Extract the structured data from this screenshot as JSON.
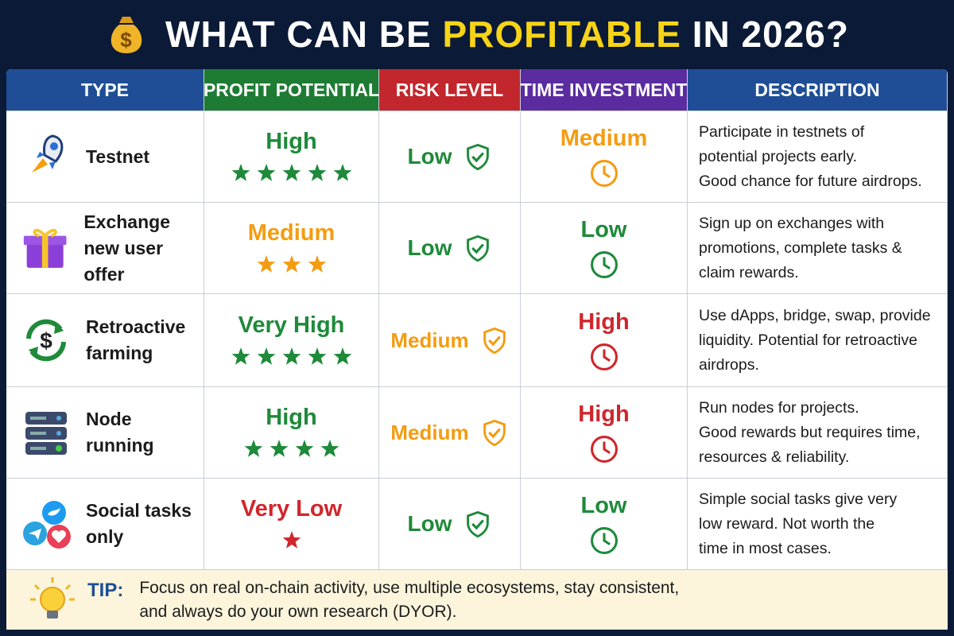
{
  "header": {
    "title_parts": [
      "WHAT CAN BE ",
      "PROFITABLE",
      " IN 2026?"
    ],
    "highlight_color": "#f7d417"
  },
  "table": {
    "headers": [
      {
        "label": "TYPE",
        "color": "#1f4e96"
      },
      {
        "label": "PROFIT POTENTIAL",
        "color": "#1e7b34"
      },
      {
        "label": "RISK LEVEL",
        "color": "#c1272d"
      },
      {
        "label": "TIME INVESTMENT",
        "color": "#5a2ca0"
      },
      {
        "label": "DESCRIPTION",
        "color": "#1f4e96"
      }
    ],
    "rows": [
      {
        "type": [
          "Testnet"
        ],
        "profit": {
          "label": "High",
          "stars": 5,
          "color": "#1e8a3a"
        },
        "risk": {
          "label": "Low",
          "color": "#1e8a3a"
        },
        "time": {
          "label": "Medium",
          "color": "#f39c12"
        },
        "description": [
          "Participate in testnets of",
          "potential projects early.",
          "Good chance for future airdrops."
        ]
      },
      {
        "type": [
          "Exchange",
          "new user offer"
        ],
        "profit": {
          "label": "Medium",
          "stars": 3,
          "color": "#f39c12"
        },
        "risk": {
          "label": "Low",
          "color": "#1e8a3a"
        },
        "time": {
          "label": "Low",
          "color": "#1e8a3a"
        },
        "description": [
          "Sign up on exchanges with",
          "promotions, complete tasks &",
          "claim rewards."
        ]
      },
      {
        "type": [
          "Retroactive",
          "farming"
        ],
        "profit": {
          "label": "Very High",
          "stars": 5,
          "color": "#1e8a3a"
        },
        "risk": {
          "label": "Medium",
          "color": "#f39c12"
        },
        "time": {
          "label": "High",
          "color": "#d0262b"
        },
        "description": [
          "Use dApps, bridge, swap, provide",
          "liquidity. Potential for retroactive",
          "airdrops."
        ]
      },
      {
        "type": [
          "Node",
          "running"
        ],
        "profit": {
          "label": "High",
          "stars": 4,
          "color": "#1e8a3a"
        },
        "risk": {
          "label": "Medium",
          "color": "#f39c12"
        },
        "time": {
          "label": "High",
          "color": "#d0262b"
        },
        "description": [
          "Run nodes for projects.",
          "Good rewards but requires time,",
          "resources & reliability."
        ]
      },
      {
        "type": [
          "Social tasks",
          "only"
        ],
        "profit": {
          "label": "Very Low",
          "stars": 1,
          "color": "#d0262b"
        },
        "risk": {
          "label": "Low",
          "color": "#1e8a3a"
        },
        "time": {
          "label": "Low",
          "color": "#1e8a3a"
        },
        "description": [
          "Simple social tasks give very",
          "low reward. Not worth the",
          "time in most cases."
        ]
      }
    ]
  },
  "tip": {
    "label": "TIP:",
    "lines": [
      "Focus on real on-chain activity, use multiple ecosystems, stay consistent,",
      "and always do your own research (DYOR)."
    ]
  }
}
